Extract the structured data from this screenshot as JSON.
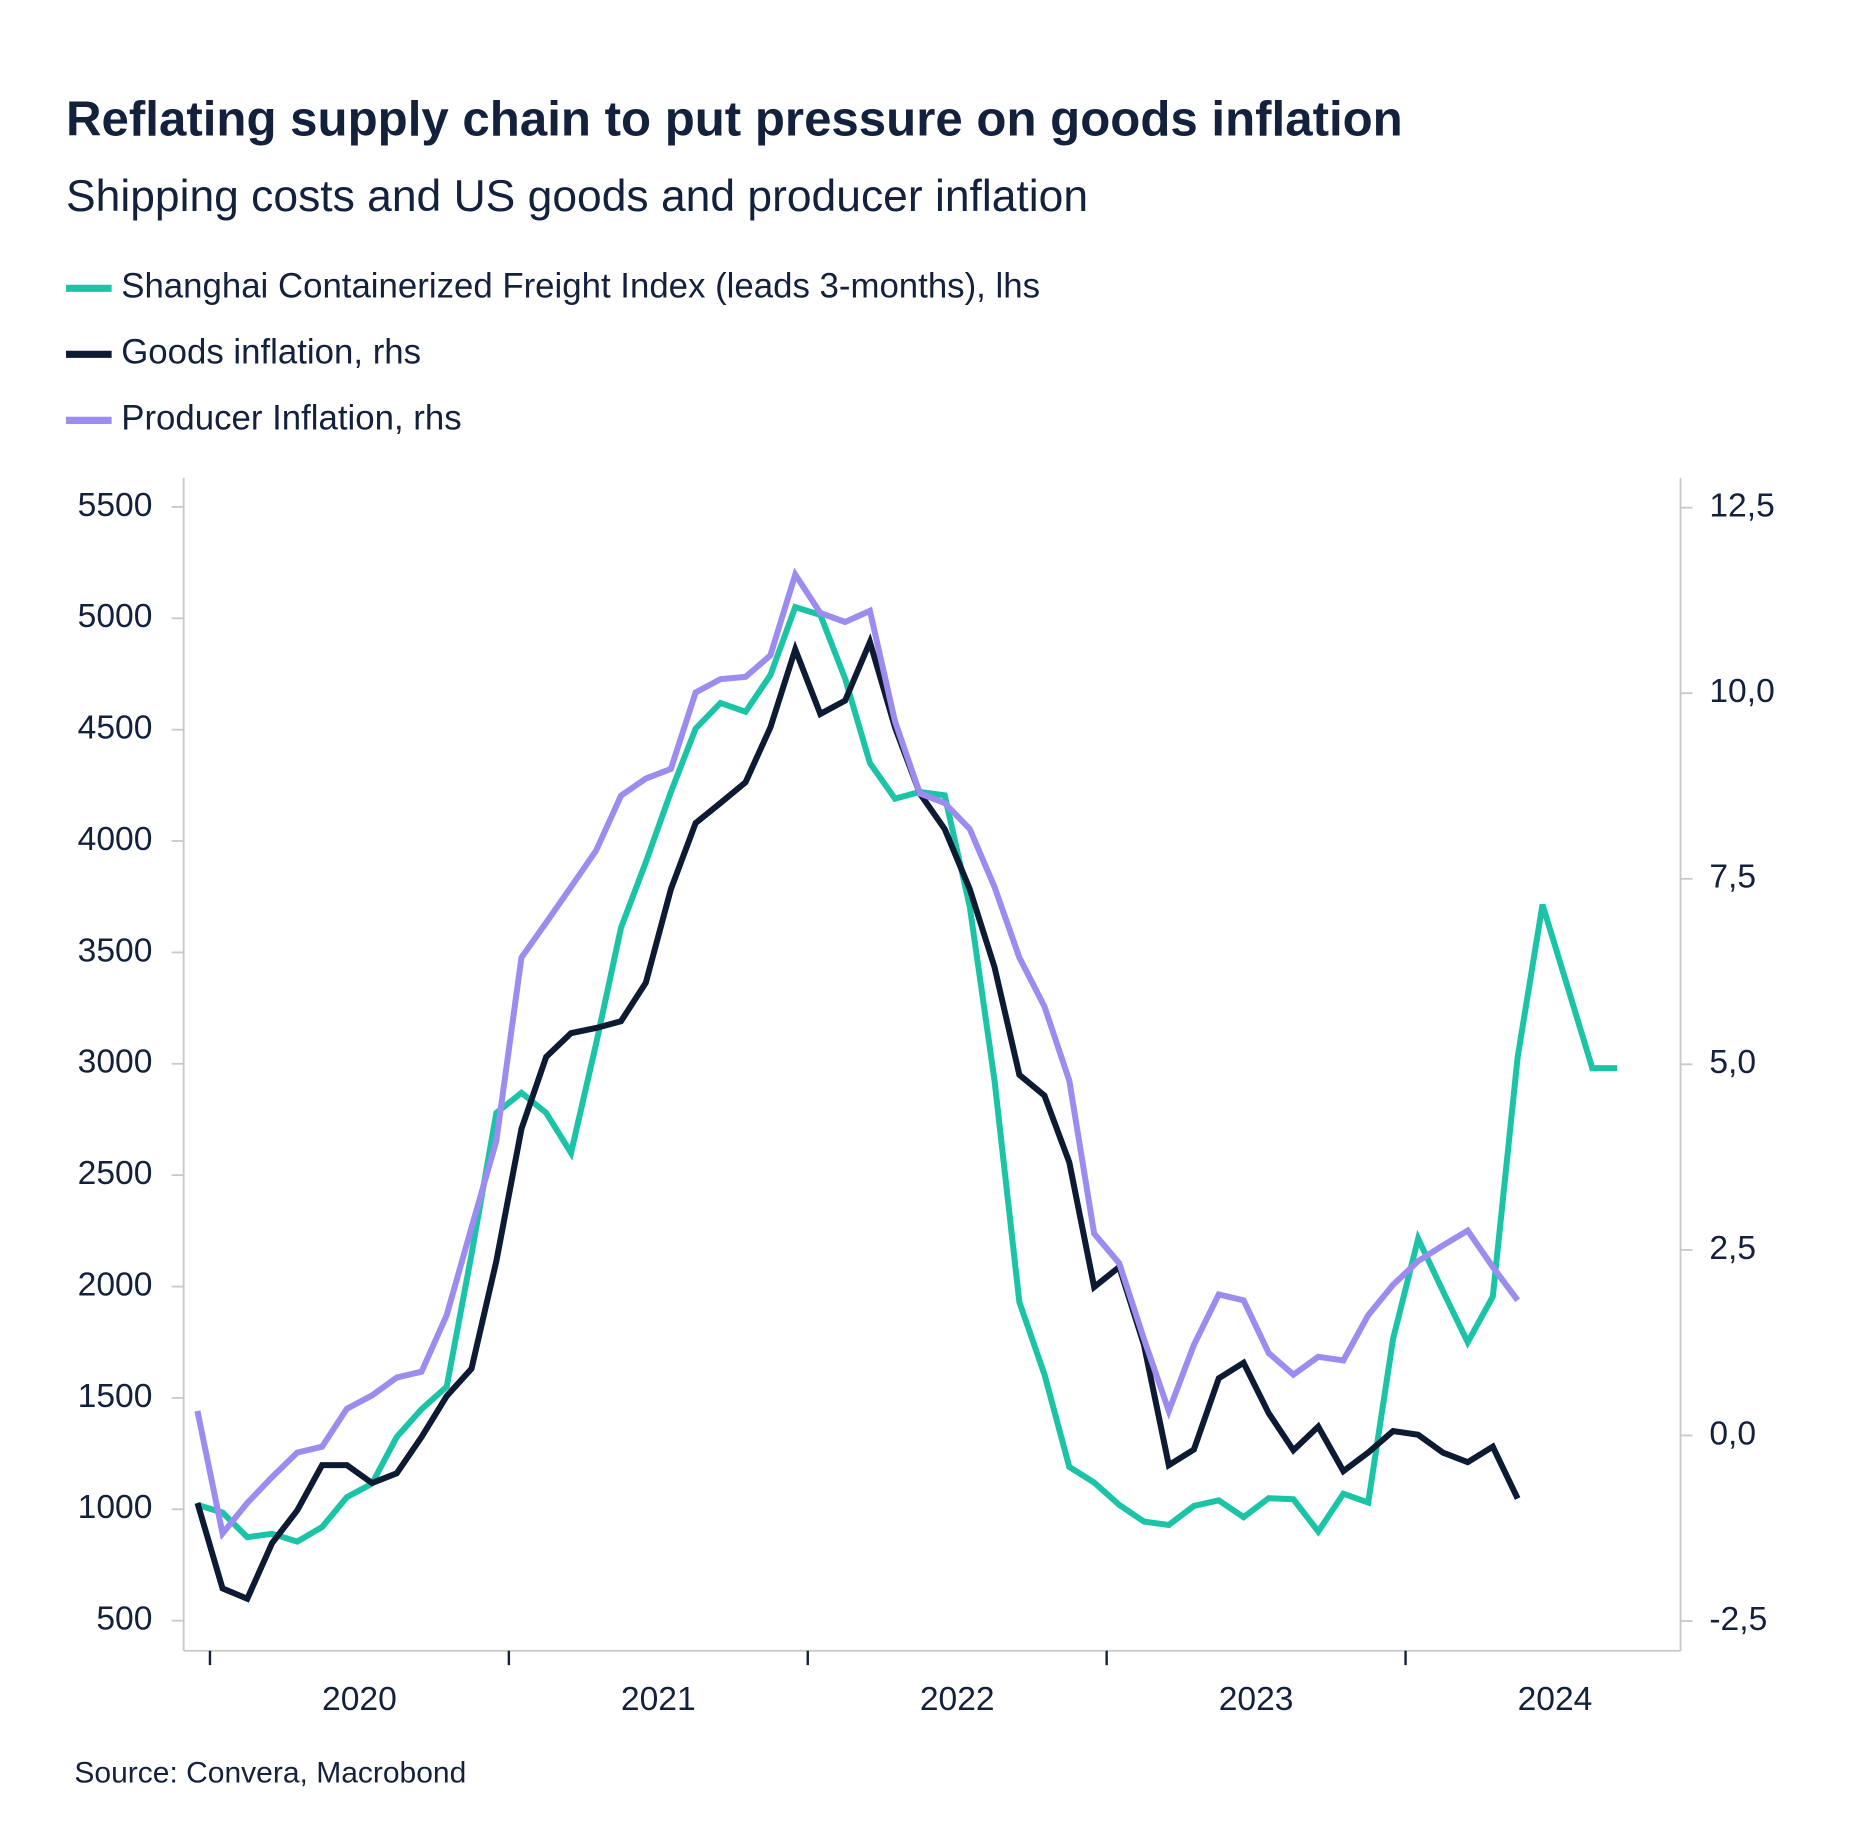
{
  "chart_data": {
    "type": "line",
    "title": "Reflating supply chain to put pressure on goods inflation",
    "subtitle": "Shipping costs and US goods and producer inflation",
    "source": "Source: Convera, Macrobond",
    "x": [
      2019.958,
      2020.042,
      2020.125,
      2020.208,
      2020.292,
      2020.375,
      2020.458,
      2020.542,
      2020.625,
      2020.708,
      2020.792,
      2020.875,
      2020.958,
      2021.042,
      2021.125,
      2021.208,
      2021.292,
      2021.375,
      2021.458,
      2021.542,
      2021.625,
      2021.708,
      2021.792,
      2021.875,
      2021.958,
      2022.042,
      2022.125,
      2022.208,
      2022.292,
      2022.375,
      2022.458,
      2022.542,
      2022.625,
      2022.708,
      2022.792,
      2022.875,
      2022.958,
      2023.042,
      2023.125,
      2023.208,
      2023.292,
      2023.375,
      2023.458,
      2023.542,
      2023.625,
      2023.708,
      2023.792,
      2023.875,
      2023.958,
      2024.042,
      2024.125,
      2024.208,
      2024.292,
      2024.375,
      2024.458,
      2024.542,
      2024.625,
      2024.708
    ],
    "series": [
      {
        "name": "Shanghai Containerized Freight Index (leads 3-months), lhs",
        "color": "#1cc4a7",
        "axis": "y",
        "values": [
          1020,
          985,
          875,
          890,
          855,
          920,
          1055,
          1115,
          1325,
          1450,
          1550,
          2145,
          2780,
          2870,
          2780,
          2600,
          3090,
          3610,
          3905,
          4220,
          4505,
          4620,
          4580,
          4745,
          5050,
          5015,
          4730,
          4350,
          4190,
          4220,
          4205,
          3705,
          2925,
          1930,
          1605,
          1190,
          1120,
          1020,
          945,
          930,
          1015,
          1040,
          965,
          1050,
          1045,
          900,
          1070,
          1030,
          1765,
          2215,
          1980,
          1750,
          1955,
          3030,
          3715,
          3345,
          2980,
          2980
        ]
      },
      {
        "name": "Goods inflation, rhs",
        "color": "#0c1a33",
        "axis": "y2",
        "values": [
          -0.91,
          -2.06,
          -2.2,
          -1.45,
          -1.01,
          -0.4,
          -0.4,
          -0.64,
          -0.51,
          -0.02,
          0.53,
          0.9,
          2.35,
          4.13,
          5.1,
          5.42,
          5.49,
          5.58,
          6.1,
          7.36,
          8.25,
          8.52,
          8.8,
          9.54,
          10.59,
          9.72,
          9.9,
          10.69,
          9.54,
          8.65,
          8.17,
          7.36,
          6.31,
          4.86,
          4.58,
          3.68,
          2.0,
          2.27,
          1.22,
          -0.4,
          -0.19,
          0.77,
          0.98,
          0.3,
          -0.2,
          0.12,
          -0.48,
          -0.23,
          0.06,
          0.01,
          -0.23,
          -0.36,
          -0.15,
          -0.85,
          null,
          null,
          null,
          null
        ]
      },
      {
        "name": "Producer Inflation, rhs",
        "color": "#9d8cf0",
        "axis": "y2",
        "values": [
          0.33,
          -1.32,
          -0.91,
          -0.56,
          -0.23,
          -0.15,
          0.36,
          0.54,
          0.78,
          0.86,
          1.62,
          2.8,
          3.97,
          6.44,
          6.91,
          7.39,
          7.88,
          8.62,
          8.85,
          8.98,
          10.01,
          10.19,
          10.22,
          10.51,
          11.6,
          11.08,
          10.96,
          11.11,
          9.62,
          8.65,
          8.52,
          8.17,
          7.39,
          6.44,
          5.78,
          4.78,
          2.72,
          2.32,
          1.3,
          0.33,
          1.22,
          1.9,
          1.82,
          1.11,
          0.82,
          1.06,
          1.01,
          1.62,
          2.03,
          2.35,
          2.56,
          2.76,
          2.27,
          1.82,
          null,
          null,
          null,
          null
        ]
      }
    ],
    "xlim": [
      2019.912,
      2024.92
    ],
    "xticks": [
      2020,
      2021,
      2022,
      2023,
      2024
    ],
    "ylim": [
      365,
      5630
    ],
    "yticks": [
      500,
      1000,
      1500,
      2000,
      2500,
      3000,
      3500,
      4000,
      4500,
      5000,
      5500
    ],
    "y2lim": [
      -2.9,
      12.9
    ],
    "y2ticks": [
      {
        "value": -2.5,
        "label": "-2,5"
      },
      {
        "value": 0,
        "label": "0,0"
      },
      {
        "value": 2.5,
        "label": "2,5"
      },
      {
        "value": 5,
        "label": "5,0"
      },
      {
        "value": 7.5,
        "label": "7,5"
      },
      {
        "value": 10,
        "label": "10,0"
      },
      {
        "value": 12.5,
        "label": "12,5"
      }
    ]
  }
}
